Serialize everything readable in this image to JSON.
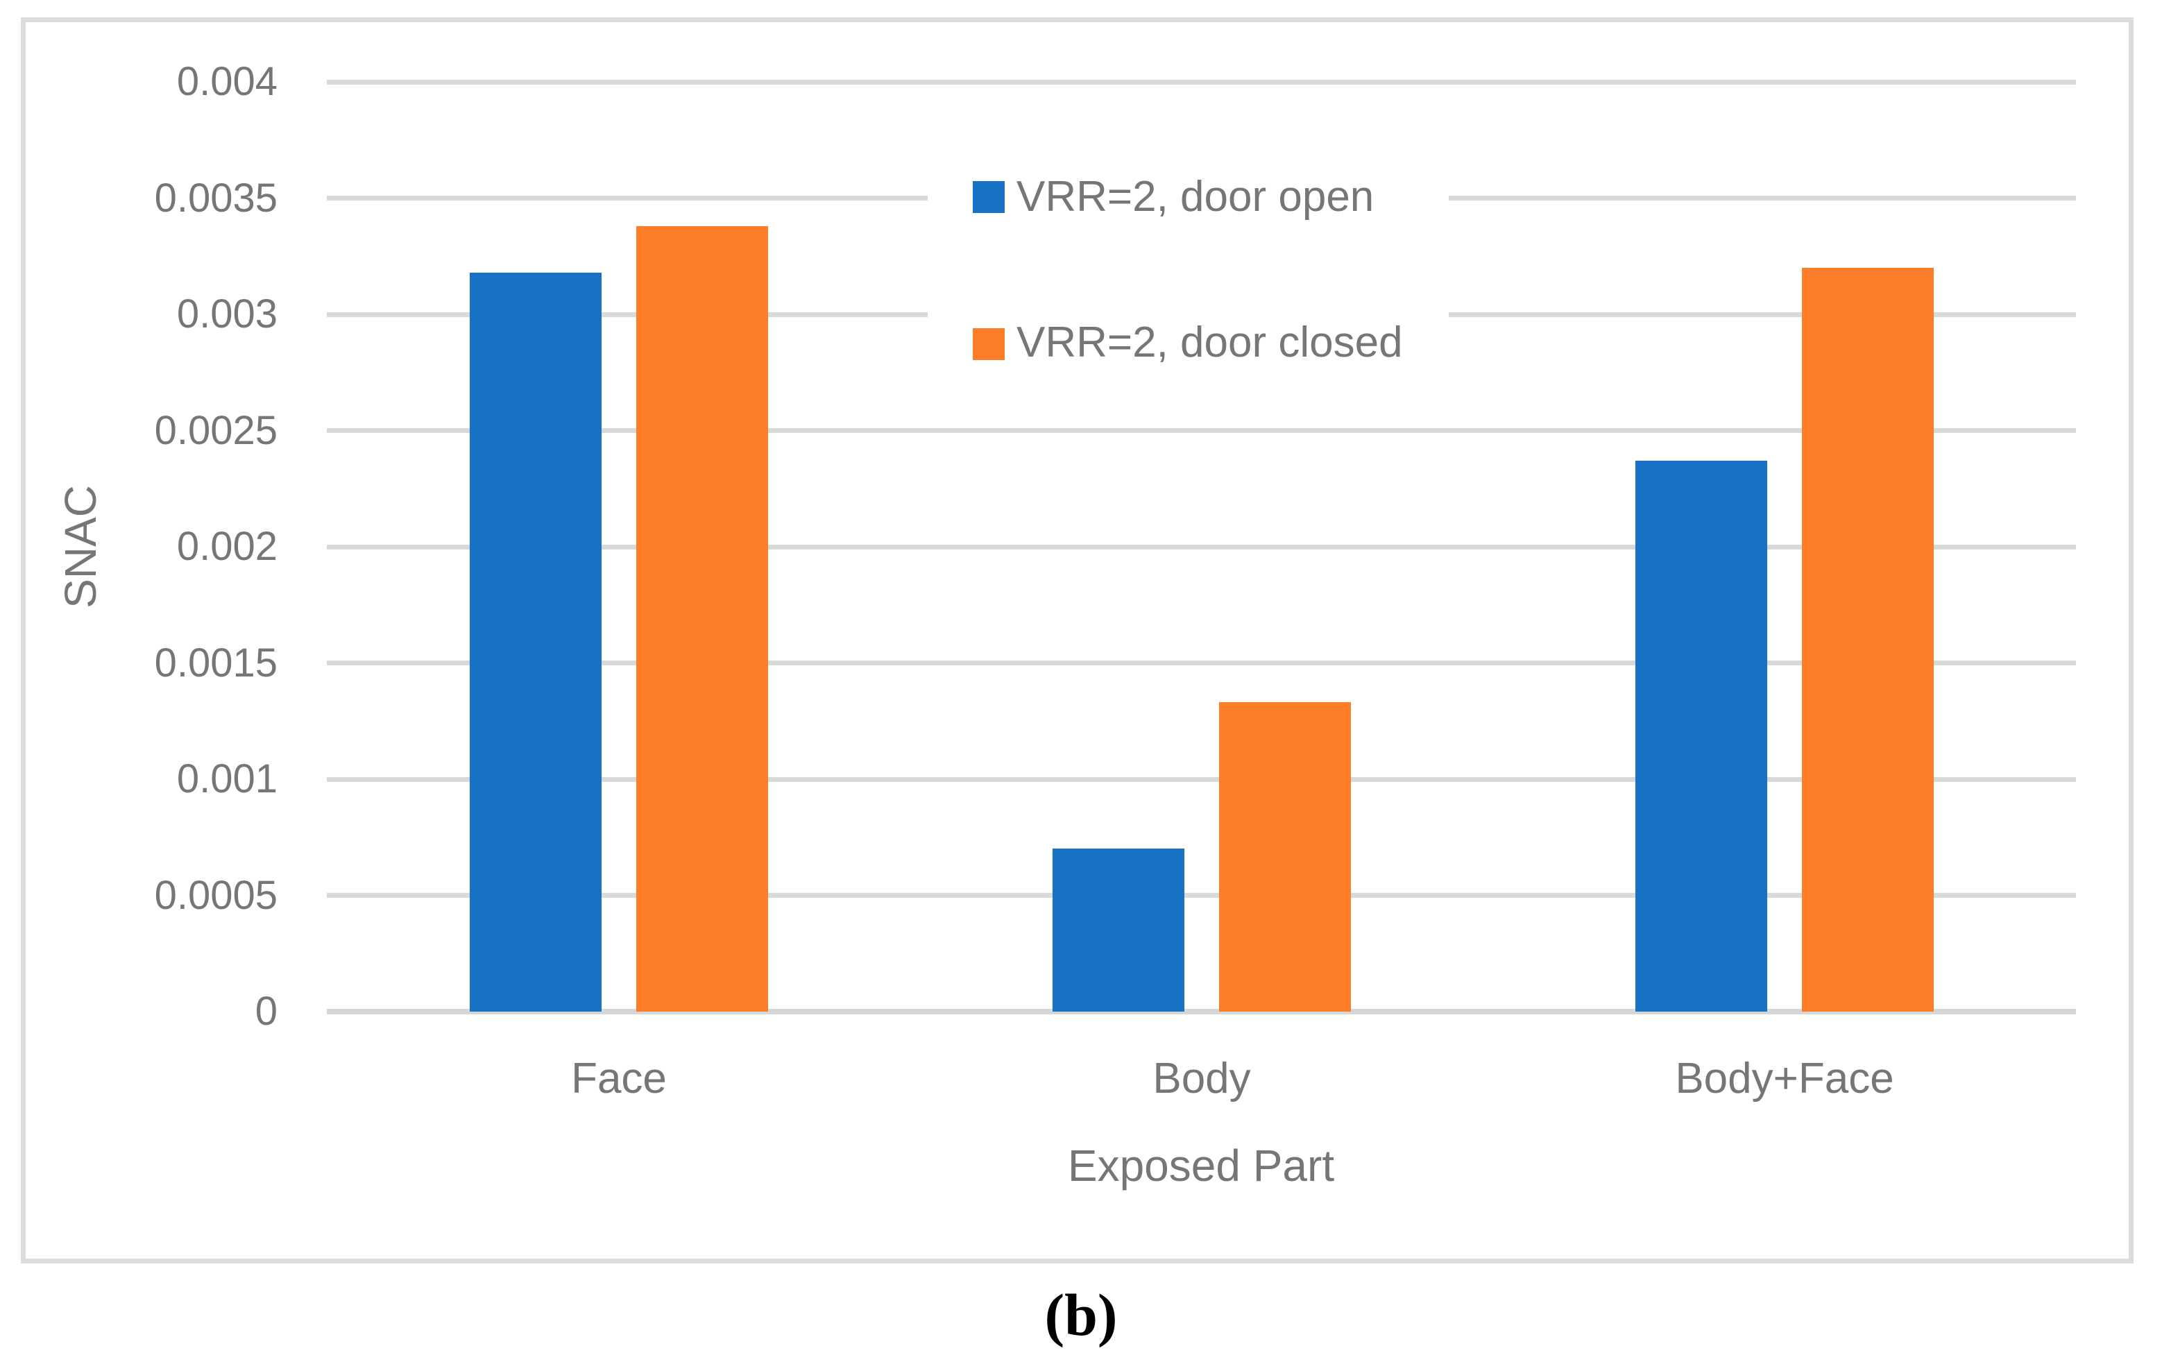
{
  "figure": {
    "caption": "(b)"
  },
  "chart_data": {
    "type": "bar",
    "title": "",
    "categories": [
      "Face",
      "Body",
      "Body+Face"
    ],
    "series": [
      {
        "name": "VRR=2, door open",
        "color": "#1772C5",
        "values": [
          0.00318,
          0.0007,
          0.00237
        ]
      },
      {
        "name": "VRR=2, door closed",
        "color": "#FD7E28",
        "values": [
          0.00338,
          0.00133,
          0.0032
        ]
      }
    ],
    "xlabel": "Exposed Part",
    "ylabel": "SNAC",
    "ylim": [
      0,
      0.004
    ],
    "ytick_step": 0.0005,
    "ytick_labels": [
      "0",
      "0.0005",
      "0.001",
      "0.0015",
      "0.002",
      "0.0025",
      "0.003",
      "0.0035",
      "0.004"
    ],
    "grid": "horizontal",
    "legend_position": "inside-top-center",
    "colors": {
      "gridline": "#D9D9D9",
      "axis_text": "#767676",
      "frame_border": "#DCDCDC"
    }
  }
}
